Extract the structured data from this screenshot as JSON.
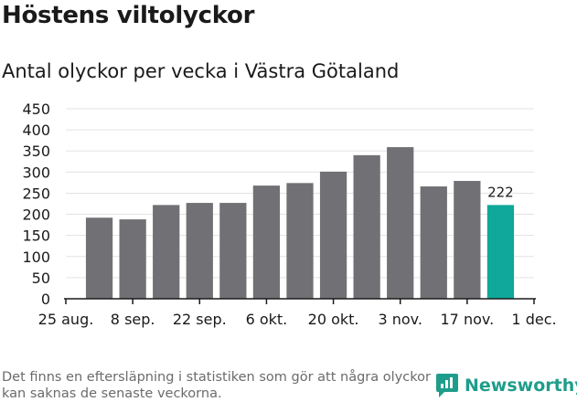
{
  "title": "Höstens viltolyckor",
  "subtitle": "Antal olyckor per vecka i Västra Götaland",
  "footnote": "Det finns en eftersläpning i statistiken som gör att några olyckor kan saknas de senaste veckorna.",
  "brand": {
    "name": "Newsworthy",
    "icon": "newsworthy-logo-icon"
  },
  "colors": {
    "bar": "#717074",
    "highlight": "#0fa89a",
    "grid": "#e3e3e3",
    "axis": "#1a1a1a",
    "brand": "#1f9d8b"
  },
  "chart_data": {
    "type": "bar",
    "x": [
      "2018-08-27",
      "2018-09-03",
      "2018-09-10",
      "2018-09-17",
      "2018-09-24",
      "2018-10-01",
      "2018-10-08",
      "2018-10-15",
      "2018-10-22",
      "2018-10-29",
      "2018-11-05",
      "2018-11-12",
      "2018-11-19"
    ],
    "values": [
      192,
      188,
      222,
      227,
      227,
      268,
      274,
      301,
      340,
      359,
      266,
      279,
      222
    ],
    "highlight_index": 12,
    "data_labels": [
      {
        "index": 12,
        "text": "222"
      }
    ],
    "ylim": [
      0,
      450
    ],
    "yticks": [
      0,
      50,
      100,
      150,
      200,
      250,
      300,
      350,
      400,
      450
    ],
    "xticks": [
      "25 aug.",
      "8 sep.",
      "22 sep.",
      "6 okt.",
      "20 okt.",
      "3 nov.",
      "17 nov.",
      "1 dec."
    ],
    "xlabel": "",
    "ylabel": "",
    "grid": true,
    "legend": false
  }
}
